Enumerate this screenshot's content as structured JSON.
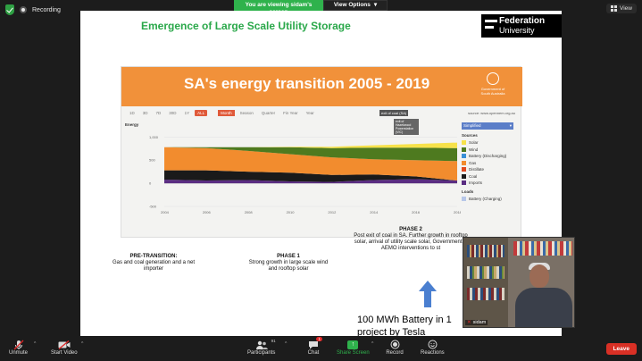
{
  "topbar": {
    "recording_label": "Recording",
    "viewing_text": "You are viewing sidam's screen",
    "view_options_label": "View Options",
    "view_label": "View"
  },
  "slide": {
    "title": "Emergence of Large Scale Utility Storage",
    "logo_line1": "Federation",
    "logo_line2": "University",
    "battery_note": "100 MWh Battery in 1 project by Tesla"
  },
  "chart": {
    "banner_title": "SA's energy transition 2005 - 2019",
    "gov_label": "Government of South Australia",
    "tabs": [
      "1D",
      "3D",
      "7D",
      "30D",
      "1Y",
      "ALL"
    ],
    "active_tab": "ALL",
    "interval_tabs": [
      "Month",
      "Season",
      "Quarter",
      "Fin Year",
      "Year"
    ],
    "active_interval": "Month",
    "source": "source: www.opennem.org.au",
    "exit_tag": "exit of coal (SA)",
    "exit_tag2": "exit of Hazelwood Powerstation (VIC)",
    "energy_label": "Energy",
    "legend_select": "Simplified",
    "sources_heading": "Sources",
    "loads_heading": "Loads",
    "sources": [
      {
        "name": "Solar",
        "color": "#f7e24a"
      },
      {
        "name": "Wind",
        "color": "#4e7a1f"
      },
      {
        "name": "Battery (Discharging)",
        "color": "#3a8fd6"
      },
      {
        "name": "Gas",
        "color": "#f28c2e"
      },
      {
        "name": "Distillate",
        "color": "#e24a1f"
      },
      {
        "name": "Coal",
        "color": "#1a1a1a"
      },
      {
        "name": "Imports",
        "color": "#5a2d82"
      }
    ],
    "loads": [
      {
        "name": "Battery (Charging)",
        "color": "#b7c7e8"
      }
    ]
  },
  "chart_data": {
    "type": "area",
    "title": "SA's energy transition 2005 - 2019",
    "xlabel": "",
    "ylabel": "Energy",
    "x": [
      "2004",
      "2006",
      "2008",
      "2010",
      "2012",
      "2014",
      "2016",
      "2018"
    ],
    "yticks": [
      "1,000",
      "500",
      "0",
      "-500"
    ],
    "ylim": [
      -500,
      1200
    ],
    "series": [
      {
        "name": "Imports",
        "values": [
          80,
          60,
          70,
          40,
          30,
          70,
          90,
          60
        ]
      },
      {
        "name": "Coal",
        "values": [
          200,
          220,
          180,
          190,
          150,
          120,
          60,
          0
        ]
      },
      {
        "name": "Gas",
        "values": [
          500,
          480,
          450,
          400,
          380,
          330,
          350,
          420
        ]
      },
      {
        "name": "Wind",
        "values": [
          0,
          20,
          80,
          150,
          200,
          250,
          270,
          280
        ]
      },
      {
        "name": "Solar",
        "values": [
          0,
          0,
          0,
          10,
          30,
          50,
          80,
          120
        ]
      }
    ]
  },
  "phases": [
    {
      "title": "PRE-TRANSITION:",
      "text": "Gas and coal generation and a net importer"
    },
    {
      "title": "PHASE 1",
      "text": "Strong growth in large scale wind and rooftop solar"
    },
    {
      "title": "PHASE 2",
      "text": "Post exit of coal in SA. Further growth in rooftop solar, arrival of utility scale solar, Government & AEMO interventions to st"
    }
  ],
  "video": {
    "name": "sidam"
  },
  "toolbar": {
    "unmute": "Unmute",
    "start_video": "Start Video",
    "participants": "Participants",
    "participants_count": "91",
    "chat": "Chat",
    "chat_badge": "1",
    "share_screen": "Share Screen",
    "record": "Record",
    "reactions": "Reactions",
    "leave": "Leave"
  }
}
